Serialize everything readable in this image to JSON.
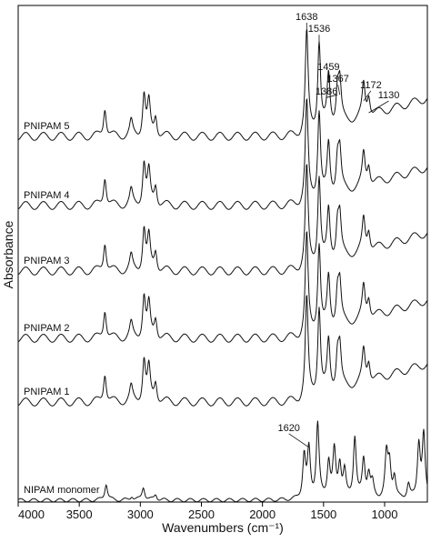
{
  "chart_data": {
    "type": "line",
    "xlabel": "Wavenumbers (cm⁻¹)",
    "ylabel": "Absorbance",
    "xlim": [
      4000,
      650
    ],
    "x_reversed": true,
    "xticks": [
      4000,
      3500,
      3000,
      2500,
      2000,
      1500,
      1000
    ],
    "xtick_labels": [
      "4000",
      "3500",
      "3000",
      "2500",
      "2000",
      "1500",
      "1000"
    ],
    "y_ticks_shown": false,
    "grid": false,
    "series": [
      {
        "name": "NIPAM monomer",
        "peaks": [
          [
            3280,
            1.0
          ],
          [
            3070,
            0.25
          ],
          [
            2975,
            0.8
          ],
          [
            2875,
            0.35
          ],
          [
            1659,
            2.6
          ],
          [
            1620,
            2.9
          ],
          [
            1548,
            4.5
          ],
          [
            1458,
            2.2
          ],
          [
            1412,
            2.8
          ],
          [
            1367,
            2.0
          ],
          [
            1328,
            1.6
          ],
          [
            1244,
            3.7
          ],
          [
            1172,
            2.3
          ],
          [
            1130,
            1.4
          ],
          [
            1100,
            0.9
          ],
          [
            985,
            2.6
          ],
          [
            960,
            2.0
          ],
          [
            920,
            1.3
          ],
          [
            805,
            0.9
          ],
          [
            720,
            3.3
          ],
          [
            680,
            3.8
          ]
        ]
      },
      {
        "name": "PNIPAM 1",
        "peaks": [
          [
            3290,
            1.5
          ],
          [
            3075,
            0.7
          ],
          [
            2970,
            2.1
          ],
          [
            2930,
            1.6
          ],
          [
            2875,
            1.0
          ],
          [
            1638,
            5.0
          ],
          [
            1536,
            4.4
          ],
          [
            1459,
            2.5
          ],
          [
            1367,
            1.9
          ],
          [
            1386,
            1.7
          ],
          [
            1172,
            1.6
          ],
          [
            1130,
            1.0
          ]
        ]
      },
      {
        "name": "PNIPAM 2",
        "peaks": [
          [
            3290,
            1.5
          ],
          [
            3075,
            0.7
          ],
          [
            2970,
            2.1
          ],
          [
            2930,
            1.6
          ],
          [
            2875,
            1.0
          ],
          [
            1638,
            5.0
          ],
          [
            1536,
            4.4
          ],
          [
            1459,
            2.5
          ],
          [
            1367,
            1.9
          ],
          [
            1386,
            1.7
          ],
          [
            1172,
            1.6
          ],
          [
            1130,
            1.0
          ]
        ]
      },
      {
        "name": "PNIPAM 3",
        "peaks": [
          [
            3290,
            1.5
          ],
          [
            3075,
            0.7
          ],
          [
            2970,
            2.1
          ],
          [
            2930,
            1.6
          ],
          [
            2875,
            1.0
          ],
          [
            1638,
            5.0
          ],
          [
            1536,
            4.4
          ],
          [
            1459,
            2.5
          ],
          [
            1367,
            1.9
          ],
          [
            1386,
            1.7
          ],
          [
            1172,
            1.6
          ],
          [
            1130,
            1.0
          ]
        ]
      },
      {
        "name": "PNIPAM 4",
        "peaks": [
          [
            3290,
            1.5
          ],
          [
            3075,
            0.7
          ],
          [
            2970,
            2.1
          ],
          [
            2930,
            1.6
          ],
          [
            2875,
            1.0
          ],
          [
            1638,
            5.0
          ],
          [
            1536,
            4.4
          ],
          [
            1459,
            2.5
          ],
          [
            1367,
            1.9
          ],
          [
            1386,
            1.7
          ],
          [
            1172,
            1.6
          ],
          [
            1130,
            1.0
          ]
        ]
      },
      {
        "name": "PNIPAM 5",
        "peaks": [
          [
            3290,
            1.5
          ],
          [
            3075,
            0.7
          ],
          [
            2970,
            2.1
          ],
          [
            2930,
            1.6
          ],
          [
            2875,
            1.0
          ],
          [
            1638,
            5.0
          ],
          [
            1536,
            4.4
          ],
          [
            1459,
            2.5
          ],
          [
            1367,
            1.9
          ],
          [
            1386,
            1.7
          ],
          [
            1172,
            1.6
          ],
          [
            1130,
            1.0
          ]
        ]
      }
    ],
    "annotations": [
      {
        "text": "1638",
        "x": 1638,
        "series": "PNIPAM 5"
      },
      {
        "text": "1536",
        "x": 1536,
        "series": "PNIPAM 5"
      },
      {
        "text": "1459",
        "x": 1459,
        "series": "PNIPAM 5"
      },
      {
        "text": "1367",
        "x": 1367,
        "series": "PNIPAM 5"
      },
      {
        "text": "1386",
        "x": 1386,
        "series": "PNIPAM 5"
      },
      {
        "text": "1172",
        "x": 1172,
        "series": "PNIPAM 5"
      },
      {
        "text": "1130",
        "x": 1130,
        "series": "PNIPAM 5"
      },
      {
        "text": "1620",
        "x": 1620,
        "series": "NIPAM monomer"
      }
    ]
  }
}
